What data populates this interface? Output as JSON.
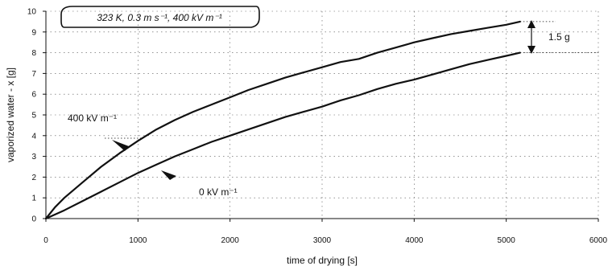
{
  "chart_data": {
    "type": "line",
    "title": "323 K, 0.3 m s⁻¹, 400 kV m⁻¹",
    "xlabel": "time of drying [s]",
    "ylabel": "vaporized water - x [g]",
    "xlim": [
      0,
      6000
    ],
    "ylim": [
      0,
      10
    ],
    "xticks": [
      "0",
      "1000",
      "2000",
      "3000",
      "4000",
      "5000",
      "6000"
    ],
    "yticks": [
      "0",
      "1",
      "2",
      "3",
      "4",
      "5",
      "6",
      "7",
      "8",
      "9",
      "10"
    ],
    "grid": "dotted",
    "series": [
      {
        "name": "400 kV m⁻¹",
        "x": [
          0,
          100,
          200,
          400,
          600,
          800,
          1000,
          1200,
          1400,
          1600,
          1800,
          2000,
          2200,
          2400,
          2600,
          2800,
          3000,
          3200,
          3400,
          3600,
          3800,
          4000,
          4200,
          4400,
          4600,
          4800,
          5000,
          5150
        ],
        "y": [
          0,
          0.55,
          1.0,
          1.75,
          2.5,
          3.15,
          3.75,
          4.3,
          4.75,
          5.15,
          5.5,
          5.85,
          6.2,
          6.5,
          6.8,
          7.05,
          7.3,
          7.55,
          7.7,
          8.0,
          8.25,
          8.5,
          8.7,
          8.9,
          9.05,
          9.2,
          9.35,
          9.5
        ]
      },
      {
        "name": "0 kV m⁻¹",
        "x": [
          0,
          200,
          400,
          600,
          800,
          1000,
          1200,
          1400,
          1600,
          1800,
          2000,
          2200,
          2400,
          2600,
          2800,
          3000,
          3200,
          3400,
          3600,
          3800,
          4000,
          4200,
          4400,
          4600,
          4800,
          5000,
          5150
        ],
        "y": [
          0,
          0.4,
          0.85,
          1.3,
          1.75,
          2.2,
          2.6,
          3.0,
          3.35,
          3.7,
          4.0,
          4.3,
          4.6,
          4.9,
          5.15,
          5.4,
          5.7,
          5.95,
          6.25,
          6.5,
          6.7,
          6.95,
          7.2,
          7.45,
          7.65,
          7.85,
          8.0
        ]
      }
    ],
    "annotations": {
      "series_400_label": "400 kV m⁻¹",
      "series_0_label": "0 kV m⁻¹",
      "difference_label": "1.5 g"
    }
  }
}
